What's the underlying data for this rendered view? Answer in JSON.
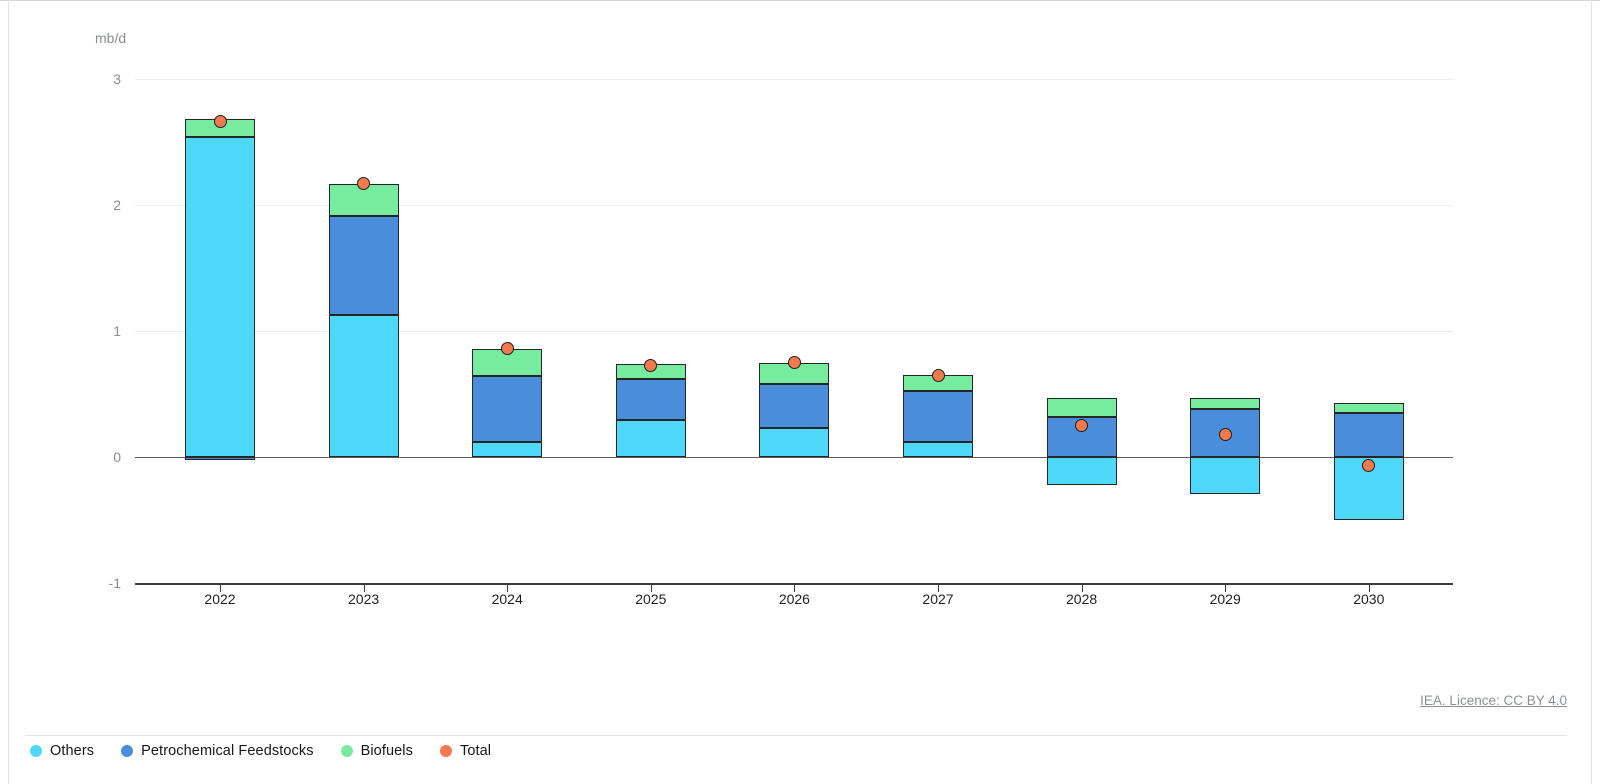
{
  "unit_label": "mb/d",
  "footer": {
    "licence_link": "IEA. Licence: CC BY 4.0"
  },
  "colors": {
    "bar_border": "#262626",
    "gridline": "#ececec",
    "zero_line": "#5c5c5c",
    "axis_line": "#3a3a3a",
    "tick_label": "#8a8d92",
    "year_label": "#1f2124"
  },
  "chart_data": {
    "type": "bar",
    "stacked": true,
    "point_overlay": true,
    "title": "",
    "ylabel": "mb/d",
    "xlabel": "",
    "ylim": [
      -1,
      3
    ],
    "yticks": [
      3,
      2,
      1,
      0,
      -1
    ],
    "grid": "horizontal",
    "legend_position": "bottom-left",
    "categories": [
      "2022",
      "2023",
      "2024",
      "2025",
      "2026",
      "2027",
      "2028",
      "2029",
      "2030"
    ],
    "series": [
      {
        "name": "Others",
        "color": "#4ED8F9",
        "values": [
          2.54,
          1.13,
          0.12,
          0.29,
          0.23,
          0.12,
          -0.22,
          -0.29,
          -0.5
        ]
      },
      {
        "name": "Petrochemical Feedstocks",
        "color": "#4A8EDB",
        "values": [
          -0.02,
          0.78,
          0.52,
          0.33,
          0.35,
          0.4,
          0.32,
          0.38,
          0.35
        ]
      },
      {
        "name": "Biofuels",
        "color": "#77EC9E",
        "values": [
          0.14,
          0.26,
          0.22,
          0.12,
          0.17,
          0.13,
          0.15,
          0.09,
          0.08
        ]
      }
    ],
    "point_series": {
      "name": "Total",
      "color": "#F4794F",
      "values": [
        2.66,
        2.17,
        0.86,
        0.73,
        0.75,
        0.65,
        0.25,
        0.18,
        -0.07
      ]
    }
  }
}
